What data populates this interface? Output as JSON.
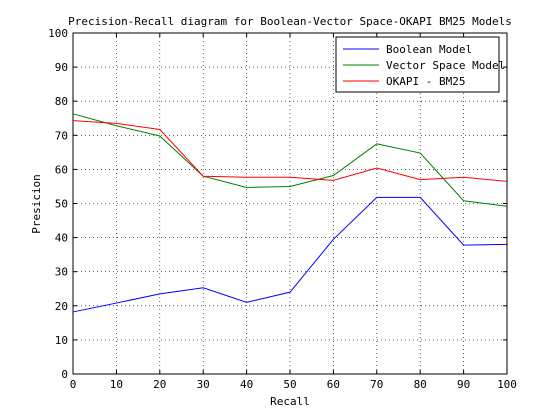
{
  "chart_data": {
    "type": "line",
    "title": "Precision-Recall diagram for Boolean-Vector Space-OKAPI BM25 Models",
    "xlabel": "Recall",
    "ylabel": "Presicion",
    "xlim": [
      0,
      100
    ],
    "ylim": [
      0,
      100
    ],
    "xticks": [
      0,
      10,
      20,
      30,
      40,
      50,
      60,
      70,
      80,
      90,
      100
    ],
    "yticks": [
      0,
      10,
      20,
      30,
      40,
      50,
      60,
      70,
      80,
      90,
      100
    ],
    "grid": true,
    "legend_position": "top-right",
    "x": [
      0,
      10,
      20,
      30,
      40,
      50,
      60,
      70,
      80,
      90,
      100
    ],
    "series": [
      {
        "name": "Boolean Model",
        "color": "#0000ff",
        "values": [
          18.2,
          20.8,
          23.5,
          25.3,
          21.0,
          24.0,
          39.5,
          51.8,
          51.8,
          37.8,
          38.0
        ]
      },
      {
        "name": "Vector Space Model",
        "color": "#008000",
        "values": [
          76.3,
          72.8,
          69.8,
          58.0,
          54.7,
          55.0,
          58.2,
          67.5,
          64.8,
          50.8,
          49.2
        ]
      },
      {
        "name": "OKAPI - BM25",
        "color": "#ff0000",
        "values": [
          74.3,
          73.5,
          71.7,
          58.0,
          57.7,
          57.7,
          56.8,
          60.4,
          57.0,
          57.7,
          56.5
        ]
      }
    ]
  }
}
